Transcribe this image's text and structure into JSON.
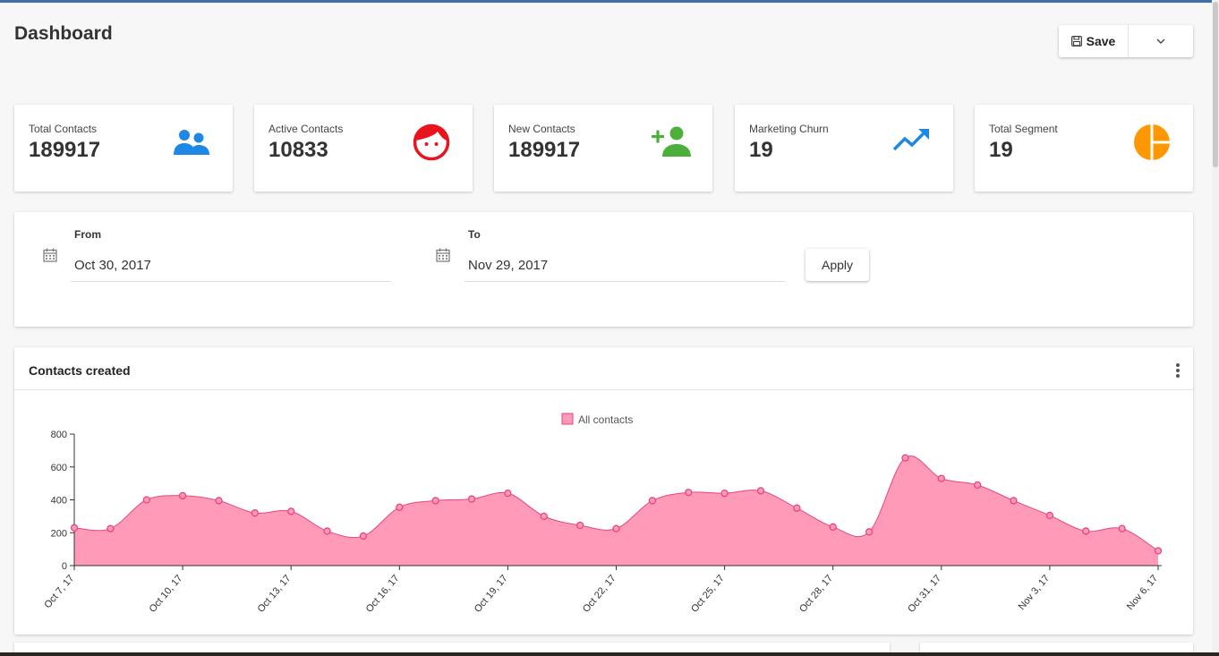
{
  "page": {
    "title": "Dashboard"
  },
  "toolbar": {
    "save_label": "Save"
  },
  "stats": [
    {
      "label": "Total Contacts",
      "value": "189917",
      "icon": "contacts-icon",
      "color": "#1e88e5"
    },
    {
      "label": "Active Contacts",
      "value": "10833",
      "icon": "face-icon",
      "color": "#e8141e"
    },
    {
      "label": "New Contacts",
      "value": "189917",
      "icon": "add-person-icon",
      "color": "#4caf3a"
    },
    {
      "label": "Marketing Churn",
      "value": "19",
      "icon": "trending-up-icon",
      "color": "#1e88e5"
    },
    {
      "label": "Total Segment",
      "value": "19",
      "icon": "pie-chart-icon",
      "color": "#ff9800"
    }
  ],
  "date_range": {
    "from_label": "From",
    "from_value": "Oct 30, 2017",
    "to_label": "To",
    "to_value": "Nov 29, 2017",
    "apply_label": "Apply"
  },
  "chart_panel": {
    "title": "Contacts created"
  },
  "chart_data": {
    "type": "area",
    "title": "",
    "xlabel": "",
    "ylabel": "",
    "ylim": [
      0,
      800
    ],
    "yticks": [
      0,
      200,
      400,
      600,
      800
    ],
    "grid": false,
    "legend": "top-center",
    "x": [
      "Oct 7, 17",
      "Oct 8, 17",
      "Oct 9, 17",
      "Oct 10, 17",
      "Oct 11, 17",
      "Oct 12, 17",
      "Oct 13, 17",
      "Oct 14, 17",
      "Oct 15, 17",
      "Oct 16, 17",
      "Oct 17, 17",
      "Oct 18, 17",
      "Oct 19, 17",
      "Oct 20, 17",
      "Oct 21, 17",
      "Oct 22, 17",
      "Oct 23, 17",
      "Oct 24, 17",
      "Oct 25, 17",
      "Oct 26, 17",
      "Oct 27, 17",
      "Oct 28, 17",
      "Oct 29, 17",
      "Oct 30, 17",
      "Oct 31, 17",
      "Nov 1, 17",
      "Nov 2, 17",
      "Nov 3, 17",
      "Nov 4, 17",
      "Nov 5, 17",
      "Nov 6, 17"
    ],
    "x_tick_labels": [
      "Oct 7, 17",
      "Oct 10, 17",
      "Oct 13, 17",
      "Oct 16, 17",
      "Oct 19, 17",
      "Oct 22, 17",
      "Oct 25, 17",
      "Oct 28, 17",
      "Oct 31, 17",
      "Nov 3, 17",
      "Nov 6, 17"
    ],
    "series": [
      {
        "name": "All contacts",
        "color": "#ff9ab8",
        "point_color": "#e8457a",
        "values": [
          230,
          225,
          400,
          425,
          395,
          320,
          330,
          210,
          180,
          355,
          395,
          405,
          440,
          300,
          245,
          225,
          395,
          445,
          440,
          455,
          350,
          235,
          205,
          655,
          530,
          490,
          395,
          305,
          210,
          225,
          90
        ]
      }
    ]
  }
}
